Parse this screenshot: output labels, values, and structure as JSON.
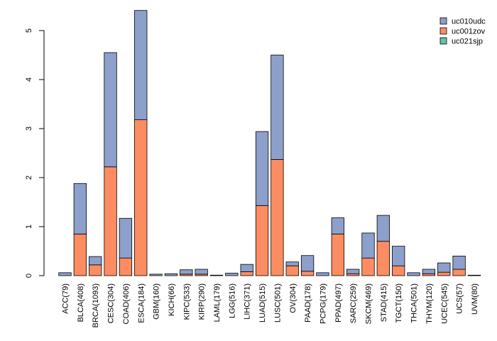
{
  "chart_data": {
    "type": "bar",
    "stacked": true,
    "title": "",
    "xlabel": "",
    "ylabel": "",
    "ylim": [
      0,
      5.4
    ],
    "yticks": [
      0,
      1,
      2,
      3,
      4,
      5
    ],
    "categories": [
      "ACC(79)",
      "BLCA(408)",
      "BRCA(1093)",
      "CESC(304)",
      "COAD(406)",
      "ESCA(184)",
      "GBM(160)",
      "KICH(66)",
      "KIPC(533)",
      "KIRP(290)",
      "LAML(179)",
      "LGG(516)",
      "LIHC(371)",
      "LUAD(515)",
      "LUSC(501)",
      "OV(304)",
      "PAAD(178)",
      "PCPG(179)",
      "PPAD(497)",
      "SARC(259)",
      "SKCM(469)",
      "STAD(415)",
      "TGCT(150)",
      "THCA(501)",
      "THYM(120)",
      "UCEC(545)",
      "UCS(57)",
      "UVM(80)"
    ],
    "series": [
      {
        "name": "uc021sjp",
        "color": "#66c2a5",
        "values": [
          0,
          0,
          0,
          0,
          0,
          0,
          0,
          0,
          0,
          0,
          0,
          0,
          0,
          0,
          0,
          0,
          0,
          0,
          0,
          0,
          0,
          0,
          0,
          0,
          0,
          0,
          0,
          0
        ]
      },
      {
        "name": "uc001zov",
        "color": "#fc8d62",
        "values": [
          0,
          0.85,
          0.22,
          2.22,
          0.36,
          3.18,
          0,
          0,
          0.03,
          0.03,
          0,
          0,
          0.08,
          1.43,
          2.37,
          0.2,
          0.09,
          0,
          0.85,
          0.04,
          0.36,
          0.7,
          0.2,
          0,
          0.04,
          0.07,
          0.13,
          0
        ]
      },
      {
        "name": "uc010udc",
        "color": "#8da0cb",
        "values": [
          0.06,
          1.03,
          0.17,
          2.33,
          0.81,
          2.23,
          0.03,
          0.04,
          0.09,
          0.1,
          0.01,
          0.05,
          0.15,
          1.51,
          2.13,
          0.08,
          0.32,
          0.06,
          0.33,
          0.09,
          0.51,
          0.53,
          0.4,
          0.06,
          0.09,
          0.19,
          0.27,
          0.01
        ]
      }
    ],
    "legend": {
      "position": "top-right",
      "entries": [
        {
          "label": "uc010udc",
          "color": "#8da0cb"
        },
        {
          "label": "uc001zov",
          "color": "#fc8d62"
        },
        {
          "label": "uc021sjp",
          "color": "#66c2a5"
        }
      ]
    },
    "grid": false
  }
}
